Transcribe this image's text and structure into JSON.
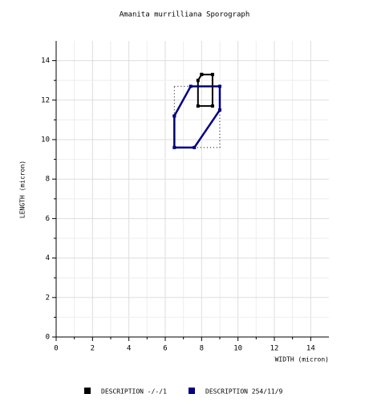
{
  "chart_data": {
    "type": "line",
    "title": "Amanita murrilliana Sporograph",
    "x_label": "WIDTH (micron)",
    "y_label": "LENGTH (micron)",
    "xlim": [
      0,
      15
    ],
    "ylim": [
      0,
      15
    ],
    "xticks": [
      0,
      2,
      4,
      6,
      8,
      10,
      12,
      14
    ],
    "yticks": [
      0,
      2,
      4,
      6,
      8,
      10,
      12,
      14
    ],
    "grid": true,
    "series": [
      {
        "name": "DESCRIPTION -/-/1",
        "color": "#000000",
        "x": [
          8.0,
          8.6,
          8.6,
          7.8,
          7.8,
          8.0
        ],
        "values": [
          13.3,
          13.3,
          11.7,
          11.7,
          13.0,
          13.3
        ]
      },
      {
        "name": "DESCRIPTION 254/11/9",
        "color": "#000080",
        "x": [
          6.5,
          7.4,
          9.0,
          9.0,
          7.6,
          6.5,
          6.5
        ],
        "values": [
          11.2,
          12.7,
          12.7,
          11.5,
          9.6,
          9.6,
          11.2
        ]
      }
    ]
  }
}
